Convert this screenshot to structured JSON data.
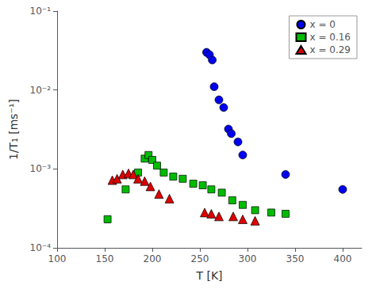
{
  "chart_data": {
    "type": "scatter",
    "xlabel": "T [K]",
    "ylabel": "1/T₁ [ms⁻¹]",
    "log": "y",
    "grid": false,
    "legend": "upper right",
    "xlim": [
      100,
      420
    ],
    "ylim": [
      0.0001,
      0.1
    ],
    "xticks": [
      100,
      150,
      200,
      250,
      300,
      350,
      400
    ],
    "yticks": [
      {
        "value": 0.0001,
        "label": "10⁻⁴"
      },
      {
        "value": 0.001,
        "label": "10⁻³"
      },
      {
        "value": 0.01,
        "label": "10⁻²"
      },
      {
        "value": 0.1,
        "label": "10⁻¹"
      }
    ],
    "series": [
      {
        "name": "x = 0",
        "color": "#0000ee",
        "marker": "circle",
        "x": [
          257,
          260,
          263,
          265,
          270,
          275,
          280,
          283,
          290,
          295,
          340,
          400
        ],
        "values": [
          0.03,
          0.028,
          0.024,
          0.011,
          0.0075,
          0.006,
          0.0032,
          0.0028,
          0.0022,
          0.0015,
          0.00085,
          0.00055
        ],
        "yerr_low": [
          0.0025,
          0.002,
          0.002,
          0.0009,
          0.0005,
          null,
          null,
          null,
          null,
          null,
          null,
          null
        ],
        "yerr_high": [
          0.0025,
          0.002,
          0.002,
          0.0009,
          0.0005,
          null,
          null,
          null,
          null,
          null,
          null,
          null
        ]
      },
      {
        "name": "x = 0.16",
        "color": "#00bb00",
        "marker": "square",
        "x": [
          153,
          172,
          185,
          192,
          196,
          200,
          205,
          212,
          222,
          232,
          243,
          253,
          262,
          273,
          284,
          295,
          308,
          325,
          340
        ],
        "values": [
          0.00023,
          0.00055,
          0.0009,
          0.00135,
          0.0015,
          0.0013,
          0.0011,
          0.0009,
          0.0008,
          0.00075,
          0.00065,
          0.00062,
          0.00055,
          0.0005,
          0.0004,
          0.00035,
          0.0003,
          0.00028,
          0.00027
        ],
        "yerr_low": [
          2e-05,
          null,
          null,
          null,
          null,
          null,
          null,
          null,
          null,
          null,
          null,
          null,
          null,
          null,
          null,
          null,
          null,
          null,
          null
        ],
        "yerr_high": [
          2e-05,
          null,
          null,
          null,
          null,
          null,
          null,
          null,
          null,
          null,
          null,
          null,
          null,
          null,
          null,
          null,
          null,
          null,
          null
        ]
      },
      {
        "name": "x = 0.29",
        "color": "#dd0000",
        "marker": "triangle",
        "x": [
          158,
          163,
          169,
          175,
          180,
          185,
          192,
          198,
          207,
          218,
          255,
          262,
          270,
          285,
          295,
          308
        ],
        "values": [
          0.00072,
          0.00075,
          0.00085,
          0.00088,
          0.00085,
          0.00075,
          0.0007,
          0.0006,
          0.00048,
          0.00042,
          0.00028,
          0.00027,
          0.00025,
          0.00025,
          0.00023,
          0.00022
        ],
        "yerr_low": [
          null,
          null,
          null,
          null,
          null,
          null,
          null,
          null,
          null,
          null,
          null,
          null,
          null,
          null,
          null,
          null
        ],
        "yerr_high": [
          null,
          null,
          null,
          null,
          null,
          null,
          null,
          null,
          null,
          null,
          null,
          null,
          null,
          null,
          null,
          null
        ]
      }
    ]
  }
}
